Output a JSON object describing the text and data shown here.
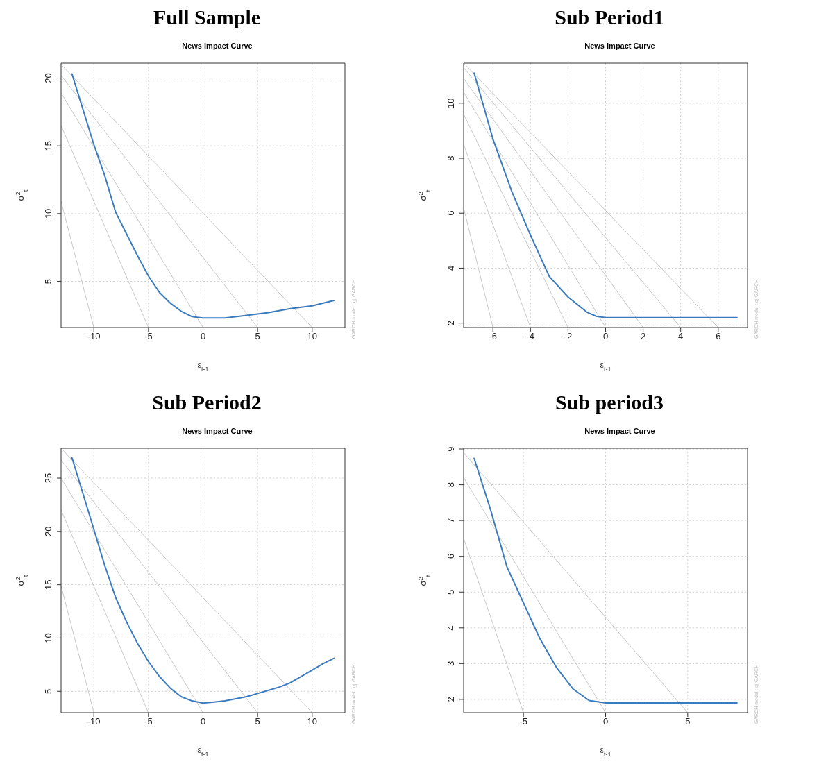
{
  "chart_data": [
    {
      "type": "line",
      "title": "Full Sample",
      "subtitle": "News Impact Curve",
      "xlabel": "ε$_{t-1}$",
      "ylabel": "σ$^{2}$$_{t}$",
      "annotations": [
        "GARCH model : gjrGARCH"
      ],
      "xlim": [
        -13,
        13
      ],
      "ylim": [
        1.6,
        21.1
      ],
      "xticks": [
        -10,
        -5,
        0,
        5,
        10
      ],
      "yticks": [
        5,
        10,
        15,
        20
      ],
      "grid": true,
      "series": [
        {
          "color": "#3a7bbf",
          "x": [
            -12,
            -10,
            -9,
            -8,
            -7,
            -6,
            -5,
            -4,
            -3,
            -2,
            -1,
            0,
            2,
            4,
            6,
            8,
            10,
            12
          ],
          "values": [
            20.3,
            15.1,
            12.8,
            10.1,
            8.5,
            6.9,
            5.4,
            4.2,
            3.4,
            2.8,
            2.4,
            2.3,
            2.3,
            2.5,
            2.7,
            3.0,
            3.2,
            3.6
          ]
        },
        {
          "color": "#c8c8c8",
          "x": [
            -13,
            -10
          ],
          "values": [
            10.9,
            1.6
          ]
        },
        {
          "color": "#c8c8c8",
          "x": [
            -13,
            -5
          ],
          "values": [
            16.5,
            1.6
          ]
        },
        {
          "color": "#c8c8c8",
          "x": [
            -13,
            0
          ],
          "values": [
            18.9,
            1.6
          ]
        },
        {
          "color": "#c8c8c8",
          "x": [
            -13,
            5
          ],
          "values": [
            20.2,
            1.6
          ]
        },
        {
          "color": "#c8c8c8",
          "x": [
            -13,
            10
          ],
          "values": [
            21.0,
            1.6
          ]
        }
      ]
    },
    {
      "type": "line",
      "title": "Sub Period1",
      "subtitle": "News Impact Curve",
      "xlabel": "ε$_{t-1}$",
      "ylabel": "σ$^{2}$$_{t}$",
      "annotations": [
        "GARCH model : gjrGARCH"
      ],
      "xlim": [
        -7.56,
        7.56
      ],
      "ylim": [
        1.84,
        11.46
      ],
      "xticks": [
        -6,
        -4,
        -2,
        0,
        2,
        4,
        6
      ],
      "yticks": [
        2,
        4,
        6,
        8,
        10
      ],
      "grid": true,
      "series": [
        {
          "color": "#3a7bbf",
          "x": [
            -7,
            -6,
            -5,
            -4,
            -3,
            -2,
            -1,
            -0.5,
            0,
            7
          ],
          "values": [
            11.1,
            8.7,
            6.8,
            5.2,
            3.7,
            2.95,
            2.4,
            2.25,
            2.2,
            2.2
          ]
        },
        {
          "color": "#c8c8c8",
          "x": [
            -7.56,
            -6
          ],
          "values": [
            6.2,
            1.84
          ]
        },
        {
          "color": "#c8c8c8",
          "x": [
            -7.56,
            -4
          ],
          "values": [
            8.5,
            1.84
          ]
        },
        {
          "color": "#c8c8c8",
          "x": [
            -7.56,
            -2
          ],
          "values": [
            9.6,
            1.84
          ]
        },
        {
          "color": "#c8c8c8",
          "x": [
            -7.56,
            0
          ],
          "values": [
            10.4,
            1.84
          ]
        },
        {
          "color": "#c8c8c8",
          "x": [
            -7.56,
            2
          ],
          "values": [
            10.9,
            1.84
          ]
        },
        {
          "color": "#c8c8c8",
          "x": [
            -7.56,
            4
          ],
          "values": [
            11.3,
            1.84
          ]
        },
        {
          "color": "#c8c8c8",
          "x": [
            -7.56,
            6
          ],
          "values": [
            11.46,
            1.84
          ]
        }
      ]
    },
    {
      "type": "line",
      "title": "Sub Period2",
      "subtitle": "News Impact Curve",
      "xlabel": "ε$_{t-1}$",
      "ylabel": "σ$^{2}$$_{t}$",
      "annotations": [
        "GARCH model : gjrGARCH"
      ],
      "xlim": [
        -13,
        13
      ],
      "ylim": [
        3.0,
        27.8
      ],
      "xticks": [
        -10,
        -5,
        0,
        5,
        10
      ],
      "yticks": [
        5,
        10,
        15,
        20,
        25
      ],
      "grid": true,
      "series": [
        {
          "color": "#3a7bbf",
          "x": [
            -12,
            -10,
            -9,
            -8,
            -7,
            -6,
            -5,
            -4,
            -3,
            -2,
            -1,
            0,
            1,
            2,
            3,
            4,
            5,
            6,
            7,
            8,
            9,
            10,
            11,
            12
          ],
          "values": [
            26.9,
            20.2,
            16.8,
            13.8,
            11.5,
            9.5,
            7.8,
            6.4,
            5.3,
            4.5,
            4.1,
            3.9,
            4.0,
            4.1,
            4.3,
            4.5,
            4.8,
            5.1,
            5.4,
            5.8,
            6.4,
            7.0,
            7.6,
            8.1
          ]
        },
        {
          "color": "#c8c8c8",
          "x": [
            -13,
            -10
          ],
          "values": [
            14.9,
            3.0
          ]
        },
        {
          "color": "#c8c8c8",
          "x": [
            -13,
            -5
          ],
          "values": [
            22.0,
            3.0
          ]
        },
        {
          "color": "#c8c8c8",
          "x": [
            -13,
            0
          ],
          "values": [
            25.0,
            3.0
          ]
        },
        {
          "color": "#c8c8c8",
          "x": [
            -13,
            5
          ],
          "values": [
            26.7,
            3.0
          ]
        },
        {
          "color": "#c8c8c8",
          "x": [
            -13,
            10
          ],
          "values": [
            27.8,
            3.0
          ]
        }
      ]
    },
    {
      "type": "line",
      "title": "Sub period3",
      "subtitle": "News Impact Curve",
      "xlabel": "ε$_{t-1}$",
      "ylabel": "σ$^{2}$$_{t}$",
      "annotations": [
        "GARCH model : gjrGARCH"
      ],
      "xlim": [
        -8.64,
        8.64
      ],
      "ylim": [
        1.63,
        9.02
      ],
      "xticks": [
        -5,
        0,
        5
      ],
      "yticks": [
        2,
        3,
        4,
        5,
        6,
        7,
        8,
        9
      ],
      "grid": true,
      "series": [
        {
          "color": "#3a7bbf",
          "x": [
            -8,
            -7,
            -6,
            -5,
            -4,
            -3,
            -2,
            -1,
            0,
            8
          ],
          "values": [
            8.74,
            7.3,
            5.7,
            4.7,
            3.7,
            2.9,
            2.3,
            1.97,
            1.9,
            1.9
          ]
        },
        {
          "color": "#c8c8c8",
          "x": [
            -8.64,
            -5
          ],
          "values": [
            6.5,
            1.63
          ]
        },
        {
          "color": "#c8c8c8",
          "x": [
            -8.64,
            0
          ],
          "values": [
            8.2,
            1.63
          ]
        },
        {
          "color": "#c8c8c8",
          "x": [
            -8.64,
            5
          ],
          "values": [
            8.9,
            1.63
          ]
        }
      ]
    }
  ]
}
